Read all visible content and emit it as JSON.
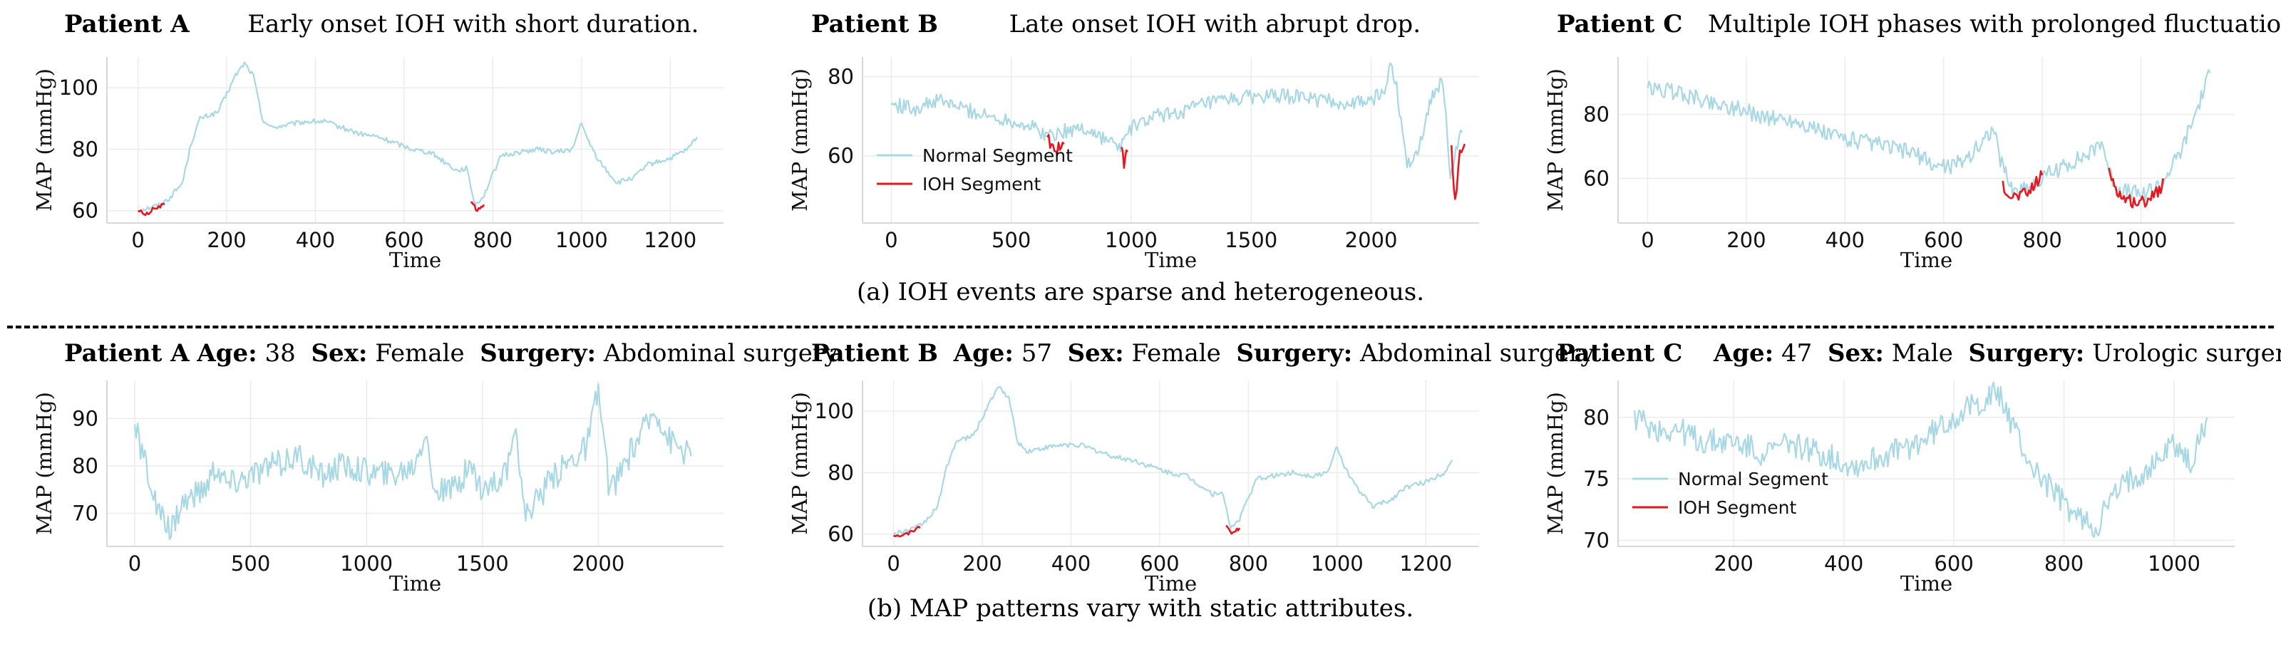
{
  "captions": {
    "a": "(a) IOH events are sparse and heterogeneous.",
    "b": "(b) MAP patterns vary with static attributes."
  },
  "colors": {
    "normal": "#a8d8e4",
    "ioh": "#e8161e",
    "grid": "#ececec",
    "axis": "#d8d8d8"
  },
  "headers": {
    "a1": {
      "patient": "Patient A",
      "text": "Early onset IOH with short duration."
    },
    "a2": {
      "patient": "Patient B",
      "text": "Late onset IOH with abrupt drop."
    },
    "a3": {
      "patient": "Patient C",
      "text": "Multiple IOH phases with prolonged fluctuations."
    },
    "b1": {
      "patient": "Patient A",
      "age_label": "Age:",
      "age": "38",
      "sex_label": "Sex:",
      "sex": "Female",
      "surgery_label": "Surgery:",
      "surgery": "Abdominal surgery"
    },
    "b2": {
      "patient": "Patient B",
      "age_label": "Age:",
      "age": "57",
      "sex_label": "Sex:",
      "sex": "Female",
      "surgery_label": "Surgery:",
      "surgery": "Abdominal surgery"
    },
    "b3": {
      "patient": "Patient C",
      "age_label": "Age:",
      "age": "47",
      "sex_label": "Sex:",
      "sex": "Male",
      "surgery_label": "Surgery:",
      "surgery": "Urologic surgery"
    }
  },
  "chart_data": [
    {
      "id": "a1",
      "type": "line",
      "xlabel": "Time",
      "ylabel": "MAP (mmHg)",
      "xlim": [
        -70,
        1320
      ],
      "ylim": [
        56,
        110
      ],
      "xticks": [
        0,
        200,
        400,
        600,
        800,
        1000,
        1200
      ],
      "yticks": [
        60,
        80,
        100
      ],
      "grid": true,
      "legend": null,
      "normal": [
        [
          0,
          60
        ],
        [
          50,
          62
        ],
        [
          70,
          64
        ],
        [
          100,
          69
        ],
        [
          120,
          82
        ],
        [
          140,
          90
        ],
        [
          180,
          92
        ],
        [
          200,
          98
        ],
        [
          220,
          104
        ],
        [
          240,
          108
        ],
        [
          260,
          104
        ],
        [
          280,
          90
        ],
        [
          300,
          87
        ],
        [
          340,
          88
        ],
        [
          380,
          89
        ],
        [
          420,
          89
        ],
        [
          460,
          87
        ],
        [
          500,
          85
        ],
        [
          540,
          84
        ],
        [
          580,
          82
        ],
        [
          620,
          80
        ],
        [
          660,
          79
        ],
        [
          700,
          75
        ],
        [
          720,
          73
        ],
        [
          740,
          74
        ],
        [
          760,
          62
        ],
        [
          780,
          65
        ],
        [
          800,
          72
        ],
        [
          820,
          78
        ],
        [
          860,
          79
        ],
        [
          900,
          80
        ],
        [
          940,
          79
        ],
        [
          980,
          80
        ],
        [
          1000,
          89
        ],
        [
          1010,
          84
        ],
        [
          1040,
          76
        ],
        [
          1080,
          69
        ],
        [
          1120,
          71
        ],
        [
          1150,
          75
        ],
        [
          1200,
          77
        ],
        [
          1240,
          80
        ],
        [
          1260,
          84
        ]
      ],
      "ioh": [
        [
          [
            0,
            60
          ],
          [
            20,
            59
          ],
          [
            40,
            61
          ],
          [
            60,
            62
          ]
        ],
        [
          [
            750,
            63
          ],
          [
            765,
            60
          ],
          [
            780,
            62
          ]
        ]
      ]
    },
    {
      "id": "a2",
      "type": "line",
      "xlabel": "Time",
      "ylabel": "MAP (mmHg)",
      "xlim": [
        -120,
        2450
      ],
      "ylim": [
        43,
        85
      ],
      "xticks": [
        0,
        500,
        1000,
        1500,
        2000
      ],
      "yticks": [
        60,
        80
      ],
      "grid": true,
      "legend": {
        "position": "lower-left",
        "items": [
          "Normal Segment",
          "IOH Segment"
        ]
      },
      "normal": [
        [
          0,
          73
        ],
        [
          100,
          72
        ],
        [
          200,
          74
        ],
        [
          300,
          72
        ],
        [
          400,
          70
        ],
        [
          500,
          69
        ],
        [
          600,
          67
        ],
        [
          650,
          65
        ],
        [
          700,
          66
        ],
        [
          800,
          67
        ],
        [
          900,
          64
        ],
        [
          950,
          62
        ],
        [
          1000,
          67
        ],
        [
          1100,
          70
        ],
        [
          1200,
          71
        ],
        [
          1300,
          73
        ],
        [
          1400,
          74
        ],
        [
          1500,
          75
        ],
        [
          1600,
          75
        ],
        [
          1700,
          75
        ],
        [
          1800,
          74
        ],
        [
          1900,
          73
        ],
        [
          2000,
          74
        ],
        [
          2050,
          76
        ],
        [
          2080,
          82
        ],
        [
          2100,
          80
        ],
        [
          2150,
          58
        ],
        [
          2200,
          62
        ],
        [
          2250,
          75
        ],
        [
          2300,
          79
        ],
        [
          2330,
          55
        ],
        [
          2360,
          62
        ],
        [
          2380,
          66
        ]
      ],
      "ioh": [
        [
          [
            650,
            65
          ],
          [
            680,
            61
          ],
          [
            720,
            63
          ]
        ],
        [
          [
            960,
            62
          ],
          [
            970,
            58
          ],
          [
            985,
            61
          ]
        ],
        [
          [
            2335,
            62
          ],
          [
            2350,
            48
          ],
          [
            2370,
            60
          ],
          [
            2390,
            63
          ]
        ]
      ]
    },
    {
      "id": "a3",
      "type": "line",
      "xlabel": "Time",
      "ylabel": "MAP (mmHg)",
      "xlim": [
        -60,
        1190
      ],
      "ylim": [
        46,
        98
      ],
      "xticks": [
        0,
        200,
        400,
        600,
        800,
        1000
      ],
      "yticks": [
        60,
        80
      ],
      "grid": true,
      "legend": null,
      "normal": [
        [
          0,
          88
        ],
        [
          60,
          87
        ],
        [
          120,
          84
        ],
        [
          180,
          82
        ],
        [
          240,
          79
        ],
        [
          300,
          78
        ],
        [
          360,
          74
        ],
        [
          420,
          72
        ],
        [
          480,
          70
        ],
        [
          540,
          68
        ],
        [
          580,
          64
        ],
        [
          620,
          64
        ],
        [
          660,
          68
        ],
        [
          700,
          76
        ],
        [
          715,
          66
        ],
        [
          740,
          56
        ],
        [
          780,
          58
        ],
        [
          820,
          62
        ],
        [
          860,
          65
        ],
        [
          900,
          68
        ],
        [
          920,
          72
        ],
        [
          940,
          60
        ],
        [
          960,
          56
        ],
        [
          1000,
          55
        ],
        [
          1040,
          58
        ],
        [
          1080,
          68
        ],
        [
          1110,
          80
        ],
        [
          1140,
          93
        ]
      ],
      "ioh": [
        [
          [
            720,
            58
          ],
          [
            740,
            54
          ],
          [
            770,
            55
          ],
          [
            800,
            61
          ]
        ],
        [
          [
            935,
            62
          ],
          [
            960,
            54
          ],
          [
            1000,
            52
          ],
          [
            1040,
            57
          ],
          [
            1045,
            60
          ]
        ]
      ]
    },
    {
      "id": "b1",
      "type": "line",
      "xlabel": "Time",
      "ylabel": "MAP (mmHg)",
      "xlim": [
        -120,
        2540
      ],
      "ylim": [
        63,
        98
      ],
      "xticks": [
        0,
        500,
        1000,
        1500,
        2000
      ],
      "yticks": [
        70,
        80,
        90
      ],
      "grid": true,
      "legend": null,
      "normal": [
        [
          0,
          88
        ],
        [
          50,
          80
        ],
        [
          100,
          70
        ],
        [
          150,
          66
        ],
        [
          200,
          72
        ],
        [
          300,
          75
        ],
        [
          350,
          80
        ],
        [
          400,
          76
        ],
        [
          500,
          78
        ],
        [
          600,
          80
        ],
        [
          700,
          82
        ],
        [
          750,
          80
        ],
        [
          800,
          78
        ],
        [
          900,
          80
        ],
        [
          1000,
          79
        ],
        [
          1100,
          78
        ],
        [
          1200,
          80
        ],
        [
          1260,
          88
        ],
        [
          1280,
          76
        ],
        [
          1350,
          74
        ],
        [
          1450,
          80
        ],
        [
          1500,
          75
        ],
        [
          1600,
          78
        ],
        [
          1650,
          86
        ],
        [
          1680,
          70
        ],
        [
          1750,
          74
        ],
        [
          1850,
          80
        ],
        [
          1950,
          84
        ],
        [
          2000,
          96
        ],
        [
          2050,
          74
        ],
        [
          2150,
          84
        ],
        [
          2250,
          92
        ],
        [
          2300,
          86
        ],
        [
          2400,
          82
        ]
      ],
      "ioh": []
    },
    {
      "id": "b2",
      "type": "line",
      "xlabel": "Time",
      "ylabel": "MAP (mmHg)",
      "xlim": [
        -70,
        1320
      ],
      "ylim": [
        56,
        110
      ],
      "xticks": [
        0,
        200,
        400,
        600,
        800,
        1000,
        1200
      ],
      "yticks": [
        60,
        80,
        100
      ],
      "grid": true,
      "legend": null,
      "normal": [
        [
          0,
          60
        ],
        [
          50,
          62
        ],
        [
          70,
          64
        ],
        [
          100,
          69
        ],
        [
          120,
          82
        ],
        [
          140,
          90
        ],
        [
          180,
          92
        ],
        [
          200,
          98
        ],
        [
          220,
          104
        ],
        [
          240,
          108
        ],
        [
          260,
          104
        ],
        [
          280,
          90
        ],
        [
          300,
          87
        ],
        [
          340,
          88
        ],
        [
          380,
          89
        ],
        [
          420,
          89
        ],
        [
          460,
          87
        ],
        [
          500,
          85
        ],
        [
          540,
          84
        ],
        [
          580,
          82
        ],
        [
          620,
          80
        ],
        [
          660,
          79
        ],
        [
          700,
          75
        ],
        [
          720,
          73
        ],
        [
          740,
          74
        ],
        [
          760,
          62
        ],
        [
          780,
          65
        ],
        [
          800,
          72
        ],
        [
          820,
          78
        ],
        [
          860,
          79
        ],
        [
          900,
          80
        ],
        [
          940,
          79
        ],
        [
          980,
          80
        ],
        [
          1000,
          89
        ],
        [
          1010,
          84
        ],
        [
          1040,
          76
        ],
        [
          1080,
          69
        ],
        [
          1120,
          71
        ],
        [
          1150,
          75
        ],
        [
          1200,
          77
        ],
        [
          1240,
          80
        ],
        [
          1260,
          84
        ]
      ],
      "ioh": [
        [
          [
            0,
            60
          ],
          [
            20,
            59
          ],
          [
            40,
            61
          ],
          [
            60,
            62
          ]
        ],
        [
          [
            750,
            63
          ],
          [
            765,
            60
          ],
          [
            780,
            62
          ]
        ]
      ]
    },
    {
      "id": "b3",
      "type": "line",
      "xlabel": "Time",
      "ylabel": "MAP (mmHg)",
      "xlim": [
        -10,
        1110
      ],
      "ylim": [
        69.5,
        83
      ],
      "xticks": [
        200,
        400,
        600,
        800,
        1000
      ],
      "yticks": [
        70,
        75,
        80
      ],
      "grid": true,
      "legend": {
        "position": "lower-left",
        "items": [
          "Normal Segment",
          "IOH Segment"
        ]
      },
      "normal": [
        [
          20,
          80
        ],
        [
          60,
          79
        ],
        [
          100,
          79
        ],
        [
          140,
          78
        ],
        [
          200,
          78
        ],
        [
          260,
          77
        ],
        [
          300,
          78
        ],
        [
          360,
          77
        ],
        [
          420,
          76
        ],
        [
          480,
          77
        ],
        [
          540,
          78
        ],
        [
          600,
          80
        ],
        [
          640,
          81
        ],
        [
          680,
          82
        ],
        [
          700,
          80
        ],
        [
          740,
          76
        ],
        [
          780,
          74
        ],
        [
          820,
          72
        ],
        [
          860,
          71
        ],
        [
          880,
          73
        ],
        [
          920,
          75
        ],
        [
          960,
          76
        ],
        [
          1000,
          78
        ],
        [
          1030,
          76
        ],
        [
          1060,
          80
        ]
      ],
      "ioh": []
    }
  ]
}
